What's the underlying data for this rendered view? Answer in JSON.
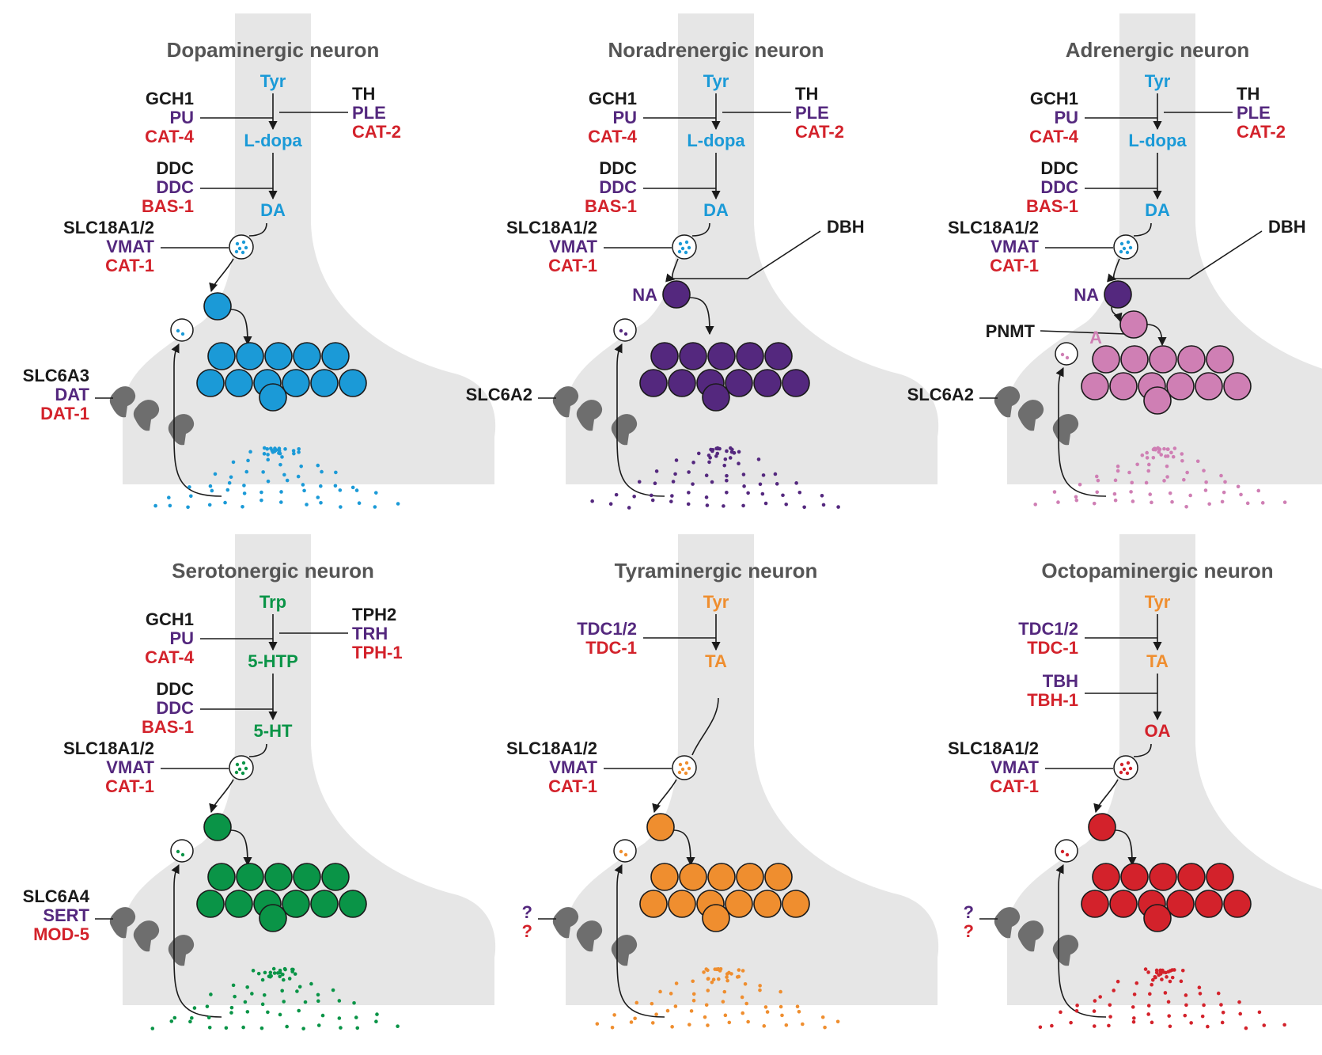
{
  "colors": {
    "black": "#1a1a1a",
    "worm": "#54287e",
    "fly_red": "#d3222b",
    "blue": "#1b9ad7",
    "purple": "#54287e",
    "pink": "#cf7fb4",
    "green": "#0a9447",
    "orange": "#ef8e2f",
    "red": "#d3222b",
    "cell": "#e6e6e6",
    "title": "#555555",
    "transporter": "#6e6e6e"
  },
  "panels": [
    {
      "id": "dopaminergic",
      "title": "Dopaminergic neuron",
      "color": "blue",
      "steps": [
        {
          "metabolite": "Tyr",
          "metabolite_color": "blue"
        },
        {
          "metabolite": "L-dopa",
          "metabolite_color": "blue"
        },
        {
          "metabolite": "DA",
          "metabolite_color": "blue"
        }
      ],
      "enzymes_left": [
        {
          "lines": [
            {
              "text": "GCH1",
              "c": "black"
            },
            {
              "text": "PU",
              "c": "worm"
            },
            {
              "text": "CAT-4",
              "c": "fly_red"
            }
          ]
        },
        {
          "lines": [
            {
              "text": "DDC",
              "c": "black"
            },
            {
              "text": "DDC",
              "c": "worm"
            },
            {
              "text": "BAS-1",
              "c": "fly_red"
            }
          ]
        }
      ],
      "enzyme_right": {
        "lines": [
          {
            "text": "TH",
            "c": "black"
          },
          {
            "text": "PLE",
            "c": "worm"
          },
          {
            "text": "CAT-2",
            "c": "fly_red"
          }
        ]
      },
      "vmat": {
        "lines": [
          {
            "text": "SLC18A1/2",
            "c": "black"
          },
          {
            "text": "VMAT",
            "c": "worm"
          },
          {
            "text": "CAT-1",
            "c": "fly_red"
          }
        ]
      },
      "transporter": {
        "lines": [
          {
            "text": "SLC6A3",
            "c": "black"
          },
          {
            "text": "DAT",
            "c": "worm"
          },
          {
            "text": "DAT-1",
            "c": "fly_red"
          }
        ]
      }
    },
    {
      "id": "noradrenergic",
      "title": "Noradrenergic neuron",
      "color": "purple",
      "steps": [
        {
          "metabolite": "Tyr",
          "metabolite_color": "blue"
        },
        {
          "metabolite": "L-dopa",
          "metabolite_color": "blue"
        },
        {
          "metabolite": "DA",
          "metabolite_color": "blue"
        }
      ],
      "enzymes_left": [
        {
          "lines": [
            {
              "text": "GCH1",
              "c": "black"
            },
            {
              "text": "PU",
              "c": "worm"
            },
            {
              "text": "CAT-4",
              "c": "fly_red"
            }
          ]
        },
        {
          "lines": [
            {
              "text": "DDC",
              "c": "black"
            },
            {
              "text": "DDC",
              "c": "worm"
            },
            {
              "text": "BAS-1",
              "c": "fly_red"
            }
          ]
        }
      ],
      "enzyme_right": {
        "lines": [
          {
            "text": "TH",
            "c": "black"
          },
          {
            "text": "PLE",
            "c": "worm"
          },
          {
            "text": "CAT-2",
            "c": "fly_red"
          }
        ]
      },
      "vmat": {
        "lines": [
          {
            "text": "SLC18A1/2",
            "c": "black"
          },
          {
            "text": "VMAT",
            "c": "worm"
          },
          {
            "text": "CAT-1",
            "c": "fly_red"
          }
        ]
      },
      "transporter": {
        "lines": [
          {
            "text": "SLC6A2",
            "c": "black"
          }
        ]
      },
      "vesicle_enzyme": "DBH",
      "product": "NA"
    },
    {
      "id": "adrenergic",
      "title": "Adrenergic neuron",
      "color": "pink",
      "steps": [
        {
          "metabolite": "Tyr",
          "metabolite_color": "blue"
        },
        {
          "metabolite": "L-dopa",
          "metabolite_color": "blue"
        },
        {
          "metabolite": "DA",
          "metabolite_color": "blue"
        }
      ],
      "enzymes_left": [
        {
          "lines": [
            {
              "text": "GCH1",
              "c": "black"
            },
            {
              "text": "PU",
              "c": "worm"
            },
            {
              "text": "CAT-4",
              "c": "fly_red"
            }
          ]
        },
        {
          "lines": [
            {
              "text": "DDC",
              "c": "black"
            },
            {
              "text": "DDC",
              "c": "worm"
            },
            {
              "text": "BAS-1",
              "c": "fly_red"
            }
          ]
        }
      ],
      "enzyme_right": {
        "lines": [
          {
            "text": "TH",
            "c": "black"
          },
          {
            "text": "PLE",
            "c": "worm"
          },
          {
            "text": "CAT-2",
            "c": "fly_red"
          }
        ]
      },
      "vmat": {
        "lines": [
          {
            "text": "SLC18A1/2",
            "c": "black"
          },
          {
            "text": "VMAT",
            "c": "worm"
          },
          {
            "text": "CAT-1",
            "c": "fly_red"
          }
        ]
      },
      "transporter": {
        "lines": [
          {
            "text": "SLC6A2",
            "c": "black"
          }
        ]
      },
      "vesicle_enzyme": "DBH",
      "product": "NA",
      "second_enzyme": "PNMT",
      "final_product": "A"
    },
    {
      "id": "serotonergic",
      "title": "Serotonergic neuron",
      "color": "green",
      "steps": [
        {
          "metabolite": "Trp",
          "metabolite_color": "green"
        },
        {
          "metabolite": "5-HTP",
          "metabolite_color": "green"
        },
        {
          "metabolite": "5-HT",
          "metabolite_color": "green"
        }
      ],
      "enzymes_left": [
        {
          "lines": [
            {
              "text": "GCH1",
              "c": "black"
            },
            {
              "text": "PU",
              "c": "worm"
            },
            {
              "text": "CAT-4",
              "c": "fly_red"
            }
          ]
        },
        {
          "lines": [
            {
              "text": "DDC",
              "c": "black"
            },
            {
              "text": "DDC",
              "c": "worm"
            },
            {
              "text": "BAS-1",
              "c": "fly_red"
            }
          ]
        }
      ],
      "enzyme_right": {
        "lines": [
          {
            "text": "TPH2",
            "c": "black"
          },
          {
            "text": "TRH",
            "c": "worm"
          },
          {
            "text": "TPH-1",
            "c": "fly_red"
          }
        ]
      },
      "vmat": {
        "lines": [
          {
            "text": "SLC18A1/2",
            "c": "black"
          },
          {
            "text": "VMAT",
            "c": "worm"
          },
          {
            "text": "CAT-1",
            "c": "fly_red"
          }
        ]
      },
      "transporter": {
        "lines": [
          {
            "text": "SLC6A4",
            "c": "black"
          },
          {
            "text": "SERT",
            "c": "worm"
          },
          {
            "text": "MOD-5",
            "c": "fly_red"
          }
        ]
      }
    },
    {
      "id": "tyraminergic",
      "title": "Tyraminergic neuron",
      "color": "orange",
      "steps": [
        {
          "metabolite": "Tyr",
          "metabolite_color": "orange"
        },
        {
          "metabolite": "TA",
          "metabolite_color": "orange"
        }
      ],
      "enzymes_left": [
        {
          "lines": [
            {
              "text": "TDC1/2",
              "c": "worm"
            },
            {
              "text": "TDC-1",
              "c": "fly_red"
            }
          ]
        }
      ],
      "vmat": {
        "lines": [
          {
            "text": "SLC18A1/2",
            "c": "black"
          },
          {
            "text": "VMAT",
            "c": "worm"
          },
          {
            "text": "CAT-1",
            "c": "fly_red"
          }
        ]
      },
      "transporter": {
        "lines": [
          {
            "text": "?",
            "c": "worm"
          },
          {
            "text": "?",
            "c": "fly_red"
          }
        ]
      }
    },
    {
      "id": "octopaminergic",
      "title": "Octopaminergic neuron",
      "color": "red",
      "steps": [
        {
          "metabolite": "Tyr",
          "metabolite_color": "orange"
        },
        {
          "metabolite": "TA",
          "metabolite_color": "orange"
        },
        {
          "metabolite": "OA",
          "metabolite_color": "red"
        }
      ],
      "enzymes_left": [
        {
          "lines": [
            {
              "text": "TDC1/2",
              "c": "worm"
            },
            {
              "text": "TDC-1",
              "c": "fly_red"
            }
          ]
        },
        {
          "lines": [
            {
              "text": "TBH",
              "c": "worm"
            },
            {
              "text": "TBH-1",
              "c": "fly_red"
            }
          ]
        }
      ],
      "vmat": {
        "lines": [
          {
            "text": "SLC18A1/2",
            "c": "black"
          },
          {
            "text": "VMAT",
            "c": "worm"
          },
          {
            "text": "CAT-1",
            "c": "fly_red"
          }
        ]
      },
      "transporter": {
        "lines": [
          {
            "text": "?",
            "c": "worm"
          },
          {
            "text": "?",
            "c": "fly_red"
          }
        ]
      }
    }
  ]
}
